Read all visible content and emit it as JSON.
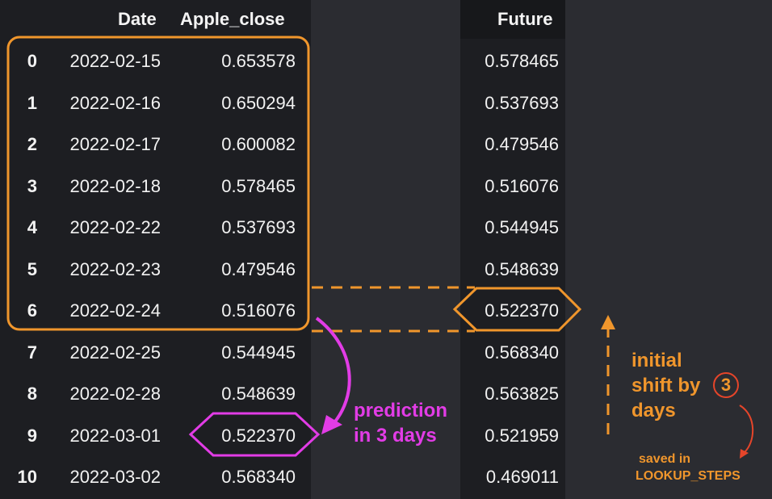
{
  "table": {
    "headers": {
      "index": "",
      "date": "Date",
      "apple_close": "Apple_close",
      "future": "Future"
    },
    "rows": [
      {
        "index": "0",
        "date": "2022-02-15",
        "apple_close": "0.653578",
        "future": "0.578465"
      },
      {
        "index": "1",
        "date": "2022-02-16",
        "apple_close": "0.650294",
        "future": "0.537693"
      },
      {
        "index": "2",
        "date": "2022-02-17",
        "apple_close": "0.600082",
        "future": "0.479546"
      },
      {
        "index": "3",
        "date": "2022-02-18",
        "apple_close": "0.578465",
        "future": "0.516076"
      },
      {
        "index": "4",
        "date": "2022-02-22",
        "apple_close": "0.537693",
        "future": "0.544945"
      },
      {
        "index": "5",
        "date": "2022-02-23",
        "apple_close": "0.479546",
        "future": "0.548639"
      },
      {
        "index": "6",
        "date": "2022-02-24",
        "apple_close": "0.516076",
        "future": "0.522370"
      },
      {
        "index": "7",
        "date": "2022-02-25",
        "apple_close": "0.544945",
        "future": "0.568340"
      },
      {
        "index": "8",
        "date": "2022-02-28",
        "apple_close": "0.548639",
        "future": "0.563825"
      },
      {
        "index": "9",
        "date": "2022-03-01",
        "apple_close": "0.522370",
        "future": "0.521959"
      },
      {
        "index": "10",
        "date": "2022-03-02",
        "apple_close": "0.568340",
        "future": "0.469011"
      }
    ]
  },
  "annotations": {
    "prediction": {
      "line1": "prediction",
      "line2": "in 3 days"
    },
    "shift": {
      "line1": "initial",
      "line2": "shift by",
      "number": "3",
      "line3": "days"
    },
    "saved": {
      "line1": "saved in",
      "line2": "LOOKUP_STEPS"
    }
  },
  "colors": {
    "background": "#2b2c31",
    "panel": "#1d1e22",
    "orange": "#f0962c",
    "magenta": "#e23ce6",
    "red": "#e5452a"
  }
}
